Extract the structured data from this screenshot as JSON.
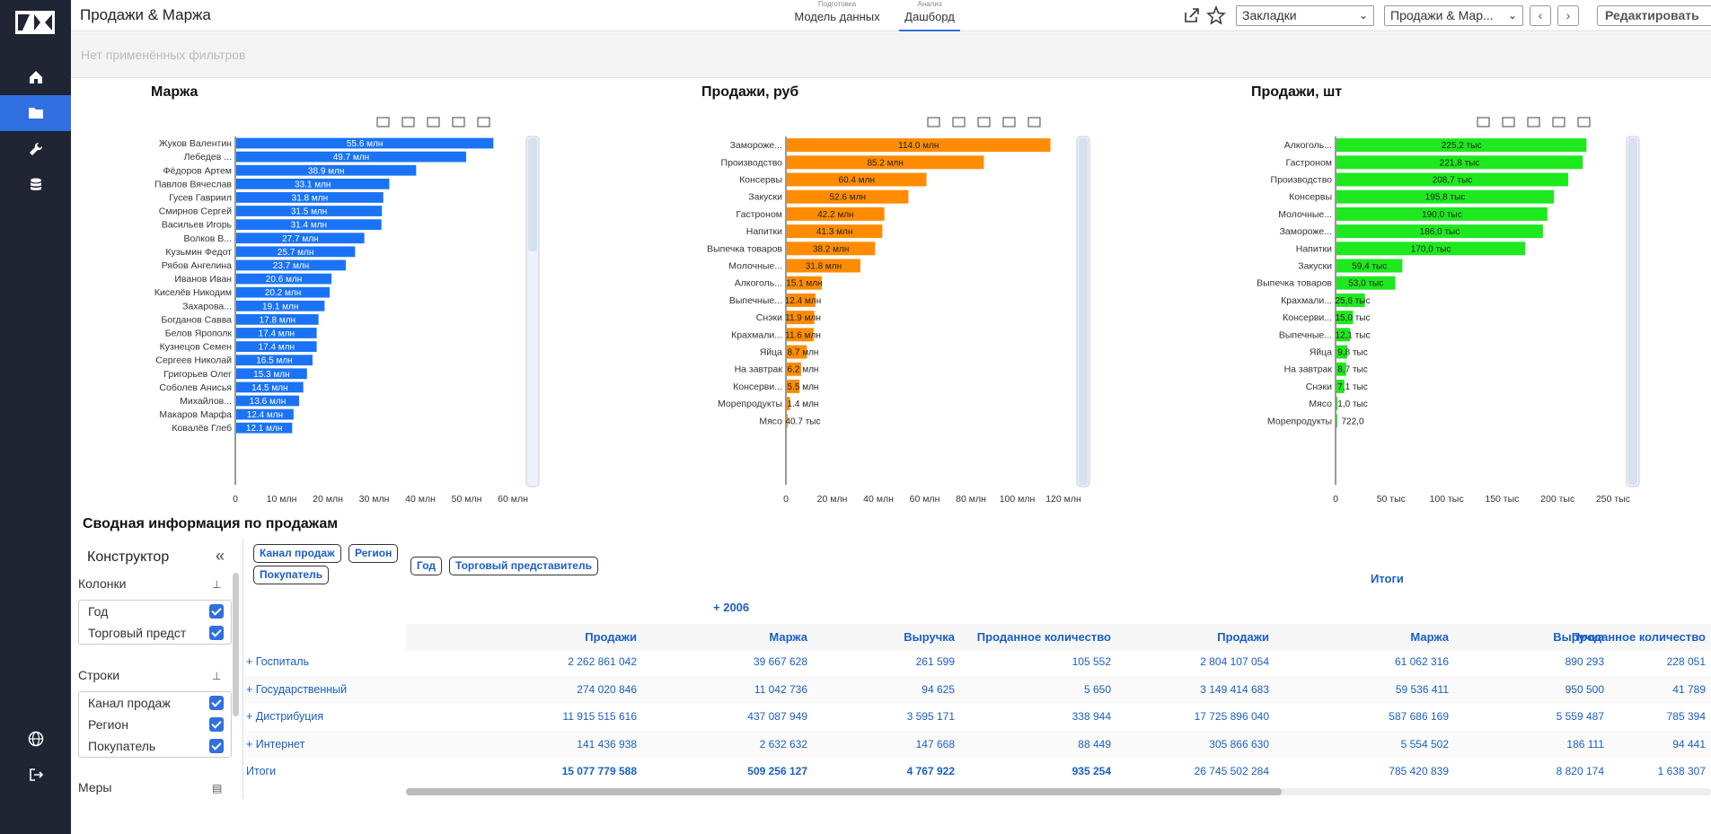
{
  "header": {
    "title": "Продажи & Маржа",
    "tabs": [
      {
        "small": "Подготовка",
        "label": "Модель данных"
      },
      {
        "small": "Анализ",
        "label": "Дашборд"
      }
    ],
    "bookmarks_label": "Закладки",
    "dashboard_select": "Продажи & Мар...",
    "edit_label": "Редактировать",
    "icons": [
      "share-icon",
      "star-icon",
      "chevron-left-icon",
      "chevron-right-icon"
    ]
  },
  "filters": {
    "empty_text": "Нет применённых фильтров"
  },
  "sidebar": {
    "icons": [
      "home-icon",
      "folder-icon",
      "wrench-icon",
      "database-icon",
      "globe-icon",
      "logout-icon"
    ],
    "accent": "#2f6fe0"
  },
  "chart_data": [
    {
      "type": "bar",
      "orientation": "horizontal",
      "title": "Маржа",
      "color": "#1a73f5",
      "label_color": "#ffffff",
      "categories": [
        "Жуков Валентин",
        "Лебедев ...",
        "Фёдоров Артем",
        "Павлов Вячеслав",
        "Гусев Гавриил",
        "Смирнов Сергей",
        "Васильев Игорь",
        "Волков В...",
        "Кузьмин Федот",
        "Рябов Ангелина",
        "Иванов Иван",
        "Киселёв Никодим",
        "Захарова...",
        "Богданов Савва",
        "Белов Ярополк",
        "Кузнецов Семен",
        "Сергеев Николай",
        "Григорьев Олег",
        "Соболев Анисья",
        "Михайлов...",
        "Макаров Марфа",
        "Ковалёв Глеб"
      ],
      "values": [
        55.6,
        49.7,
        38.9,
        33.1,
        31.8,
        31.5,
        31.4,
        27.7,
        25.7,
        23.7,
        20.6,
        20.2,
        19.1,
        17.8,
        17.4,
        17.4,
        16.5,
        15.3,
        14.5,
        13.6,
        12.4,
        12.1
      ],
      "labels": [
        "55.6 млн",
        "49.7 млн",
        "38.9 млн",
        "33.1 млн",
        "31.8 млн",
        "31.5 млн",
        "31.4 млн",
        "27.7 млн",
        "25.7 млн",
        "23.7 млн",
        "20.6 млн",
        "20.2 млн",
        "19.1 млн",
        "17.8 млн",
        "17.4 млн",
        "17.4 млн",
        "16.5 млн",
        "15.3 млн",
        "14.5 млн",
        "13.6 млн",
        "12.4 млн",
        "12.1 млн"
      ],
      "xlim": [
        0,
        60
      ],
      "xticks": [
        "0",
        "10 млн",
        "20 млн",
        "30 млн",
        "40 млн",
        "50 млн",
        "60 млн"
      ]
    },
    {
      "type": "bar",
      "orientation": "horizontal",
      "title": "Продажи, руб",
      "color": "#ff8c00",
      "label_color": "#222222",
      "categories": [
        "Заморожe...",
        "Производство",
        "Консервы",
        "Закуски",
        "Гастроном",
        "Напитки",
        "Выпечка товаров",
        "Молочные...",
        "Алкоголь...",
        "Выпечные...",
        "Снэки",
        "Крахмали...",
        "Яйца",
        "На завтрак",
        "Консерви...",
        "Морепродукты",
        "Мясо"
      ],
      "values": [
        114.0,
        85.2,
        60.4,
        52.6,
        42.2,
        41.3,
        38.2,
        31.8,
        15.1,
        12.4,
        11.9,
        11.6,
        8.7,
        6.2,
        5.5,
        1.4,
        0.0407
      ],
      "labels": [
        "114.0 млн",
        "85.2 млн",
        "60.4 млн",
        "52.6 млн",
        "42.2 млн",
        "41.3 млн",
        "38.2 млн",
        "31.8 млн",
        "15.1 млн",
        "12.4 млн",
        "11.9 млн",
        "11.6 млн",
        "8.7 млн",
        "6.2 млн",
        "5.5 млн",
        "1.4 млн",
        "40.7 тыс"
      ],
      "xlim": [
        0,
        120
      ],
      "xticks": [
        "0",
        "20 млн",
        "40 млн",
        "60 млн",
        "80 млн",
        "100 млн",
        "120 млн"
      ]
    },
    {
      "type": "bar",
      "orientation": "horizontal",
      "title": "Продажи, шт",
      "color": "#1ee81e",
      "label_color": "#222222",
      "categories": [
        "Алкоголь...",
        "Гастроном",
        "Производство",
        "Консервы",
        "Молочные...",
        "Заморожe...",
        "Напитки",
        "Закуски",
        "Выпечка товаров",
        "Крахмали...",
        "Консерви...",
        "Выпечные...",
        "Яйца",
        "На завтрак",
        "Снэки",
        "Мясо",
        "Морепродукты"
      ],
      "values": [
        225.2,
        221.8,
        208.7,
        195.8,
        190.0,
        186.0,
        170.0,
        59.4,
        53.0,
        25.6,
        15.0,
        12.1,
        9.8,
        8.7,
        7.1,
        1.0,
        0.722
      ],
      "labels": [
        "225,2 тыс",
        "221,8 тыс",
        "208,7 тыс",
        "195,8 тыс",
        "190,0 тыс",
        "186,0 тыс",
        "170,0 тыс",
        "59,4 тыс",
        "53,0 тыс",
        "25,6 тыс",
        "15,0 тыс",
        "12,1 тыс",
        "9,8 тыс",
        "8,7 тыс",
        "7,1 тыс",
        "1,0 тыс",
        "722,0"
      ],
      "xlim": [
        0,
        250
      ],
      "xticks": [
        "0",
        "50 тыс",
        "100 тыс",
        "150 тыс",
        "200 тыс",
        "250 тыс"
      ]
    }
  ],
  "summary": {
    "title": "Сводная информация по продажам",
    "constructor": {
      "title": "Конструктор",
      "columns_label": "Колонки",
      "columns": [
        "Год",
        "Торговый предст"
      ],
      "rows_label": "Строки",
      "rows": [
        "Канал продаж",
        "Регион",
        "Покупатель"
      ],
      "measures_label": "Меры"
    },
    "row_pills": [
      "Канал продаж",
      "Регион",
      "Покупатель"
    ],
    "col_pills": [
      "Год",
      "Торговый представитель"
    ],
    "year": "2006",
    "totals_header": "Итоги",
    "measure_headers": [
      "Продажи",
      "Маржа",
      "Выручка",
      "Проданное количество",
      "Продажи",
      "Маржа",
      "Выручка",
      "Проданное количество"
    ],
    "rows": [
      {
        "label": "Госпиталь",
        "cells": [
          "2 262 861 042",
          "39 667 628",
          "261 599",
          "105 552",
          "2 804 107 054",
          "61 062 316",
          "890 293",
          "228 051"
        ]
      },
      {
        "label": "Государственный",
        "cells": [
          "274 020 846",
          "11 042 736",
          "94 625",
          "5 650",
          "3 149 414 683",
          "59 536 411",
          "950 500",
          "41 789"
        ]
      },
      {
        "label": "Дистрибуция",
        "cells": [
          "11 915 515 616",
          "437 087 949",
          "3 595 171",
          "338 944",
          "17 725 896 040",
          "587 686 169",
          "5 559 487",
          "785 394"
        ]
      },
      {
        "label": "Интернет",
        "cells": [
          "141 436 938",
          "2 632 632",
          "147 668",
          "88 449",
          "305 866 630",
          "5 554 502",
          "186 111",
          "94 441"
        ]
      }
    ],
    "total_row": {
      "label": "Итоги",
      "cells": [
        "15 077 779 588",
        "509 256 127",
        "4 767 922",
        "935 254",
        "26 745 502 284",
        "785 420 839",
        "8 820 174",
        "1 638 307"
      ]
    }
  }
}
